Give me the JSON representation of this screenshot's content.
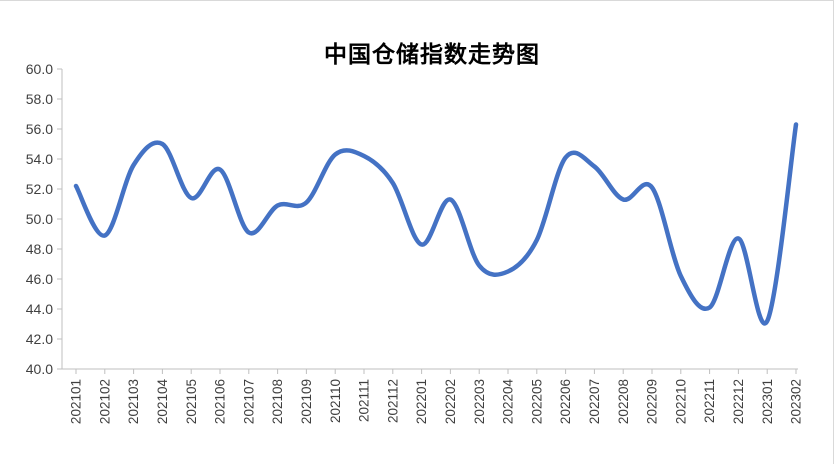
{
  "chart_data": {
    "type": "line",
    "title": "中国仓储指数走势图",
    "xlabel": "",
    "ylabel": "",
    "ylim": [
      40,
      60
    ],
    "ytick_step": 2,
    "ytick_labels": [
      "40.0",
      "42.0",
      "44.0",
      "46.0",
      "48.0",
      "50.0",
      "52.0",
      "54.0",
      "56.0",
      "58.0",
      "60.0"
    ],
    "grid": false,
    "legend_position": "none",
    "categories": [
      "202101",
      "202102",
      "202103",
      "202104",
      "202105",
      "202106",
      "202107",
      "202108",
      "202109",
      "202110",
      "202111",
      "202112",
      "202201",
      "202202",
      "202203",
      "202204",
      "202205",
      "202206",
      "202207",
      "202208",
      "202209",
      "202210",
      "202211",
      "202212",
      "202301",
      "202302"
    ],
    "series": [
      {
        "name": "中国仓储指数",
        "values": [
          52.2,
          48.9,
          53.6,
          55.0,
          51.4,
          53.3,
          49.1,
          50.9,
          51.1,
          54.3,
          54.2,
          52.4,
          48.3,
          51.3,
          46.9,
          46.5,
          48.6,
          54.1,
          53.5,
          51.3,
          52.1,
          46.2,
          44.1,
          48.7,
          43.2,
          56.3
        ]
      }
    ],
    "colors": {
      "line": "#4472C4",
      "axis": "#bfbfbf",
      "labels": "#404040"
    }
  }
}
